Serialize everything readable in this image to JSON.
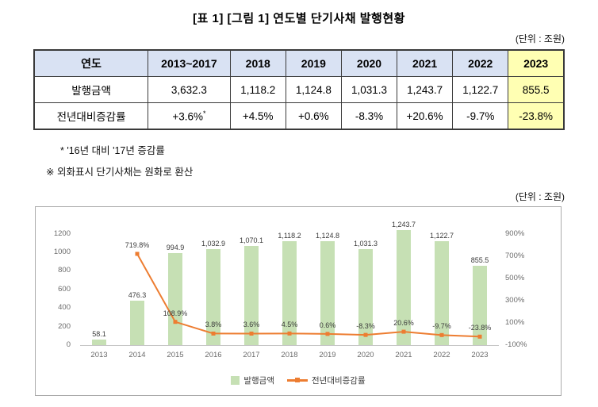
{
  "title": "[표 1] [그림 1] 연도별 단기사채 발행현황",
  "unit_note_top": "(단위 : 조원)",
  "unit_note_chart": "(단위 : 조원)",
  "table": {
    "header": [
      "연도",
      "2013~2017",
      "2018",
      "2019",
      "2020",
      "2021",
      "2022",
      "2023"
    ],
    "rows": [
      {
        "label": "발행금액",
        "values": [
          "3,632.3",
          "1,118.2",
          "1,124.8",
          "1,031.3",
          "1,243.7",
          "1,122.7",
          "855.5"
        ]
      },
      {
        "label": "전년대비증감률",
        "values": [
          "+3.6%*",
          "+4.5%",
          "+0.6%",
          "-8.3%",
          "+20.6%",
          "-9.7%",
          "-23.8%"
        ]
      }
    ],
    "header_bg": "#d9e2f3",
    "highlight_bg": "#ffffb3"
  },
  "notes": [
    "* '16년 대비 '17년 증감률",
    "※ 외화표시 단기사채는 원화로 환산"
  ],
  "chart_data": {
    "type": "bar+line",
    "categories": [
      "2013",
      "2014",
      "2015",
      "2016",
      "2017",
      "2018",
      "2019",
      "2020",
      "2021",
      "2022",
      "2023"
    ],
    "series": [
      {
        "name": "발행금액",
        "type": "bar",
        "color": "#c6e0b4",
        "values": [
          58.1,
          476.3,
          994.9,
          1032.9,
          1070.1,
          1118.2,
          1124.8,
          1031.3,
          1243.7,
          1122.7,
          855.5
        ],
        "labels": [
          "58.1",
          "476.3",
          "994.9",
          "1,032.9",
          "1,070.1",
          "1,118.2",
          "1,124.8",
          "1,031.3",
          "1,243.7",
          "1,122.7",
          "855.5"
        ]
      },
      {
        "name": "전년대비증감률",
        "type": "line",
        "color": "#ed7d31",
        "values": [
          null,
          719.8,
          108.9,
          3.8,
          3.6,
          4.5,
          0.6,
          -8.3,
          20.6,
          -9.7,
          -23.8
        ],
        "labels": [
          null,
          "719.8%",
          "108.9%",
          "3.8%",
          "3.6%",
          "4.5%",
          "0.6%",
          "-8.3%",
          "20.6%",
          "-9.7%",
          "-23.8%"
        ]
      }
    ],
    "left_axis": {
      "ticks": [
        0,
        200,
        400,
        600,
        800,
        1000,
        1200
      ],
      "ylim": [
        0,
        1300
      ]
    },
    "right_axis": {
      "ticks": [
        -100,
        100,
        300,
        500,
        700,
        900
      ],
      "suffix": "%",
      "ylim": [
        -100,
        983
      ]
    },
    "legend_position": "bottom",
    "grid": false
  }
}
